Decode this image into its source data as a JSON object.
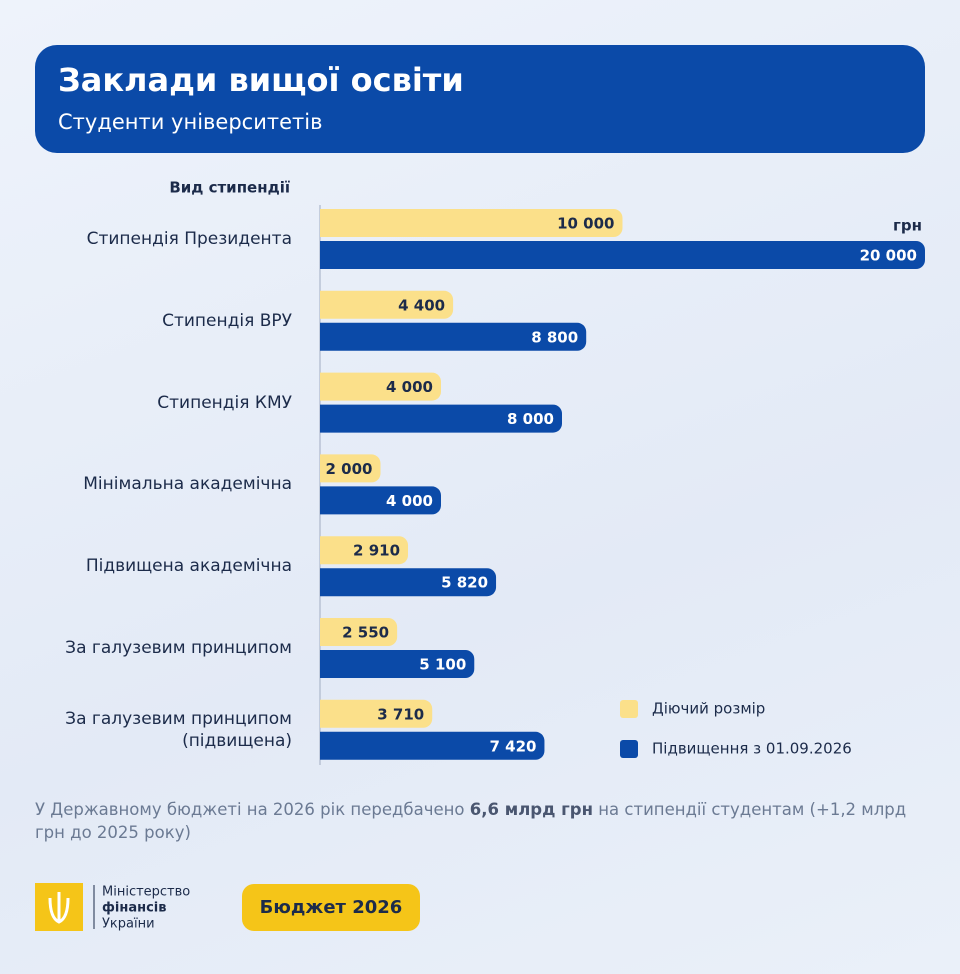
{
  "header": {
    "title": "Заклади вищої освіти",
    "subtitle": "Студенти університетів"
  },
  "chart_data": {
    "type": "bar",
    "orientation": "horizontal",
    "y_axis_label": "Вид стипендії",
    "unit": "грн",
    "categories": [
      "Стипендія Президента",
      "Стипендія ВРУ",
      "Стипендія КМУ",
      "Мінімальна академічна",
      "Підвищена академічна",
      "За галузевим принципом",
      "За галузевим принципом (підвищена)"
    ],
    "series": [
      {
        "name": "Діючий розмір",
        "color": "#fbe08a",
        "values": [
          10000,
          4400,
          4000,
          2000,
          2910,
          2550,
          3710
        ],
        "value_labels": [
          "10 000",
          "4 400",
          "4 000",
          "2 000",
          "2 910",
          "2 550",
          "3 710"
        ]
      },
      {
        "name": "Підвищення з 01.09.2026",
        "color": "#0b4aa8",
        "values": [
          20000,
          8800,
          8000,
          4000,
          5820,
          5100,
          7420
        ],
        "value_labels": [
          "20 000",
          "8 800",
          "8 000",
          "4 000",
          "5 820",
          "5 100",
          "7 420"
        ]
      }
    ],
    "xlim": [
      0,
      20000
    ],
    "legend": "lower right"
  },
  "footnote": [
    "У Державному бюджеті на 2026 рік передбачено ",
    "6,6 млрд грн",
    " на стипендії студентам (+1,2 млрд грн до 2025 року)"
  ],
  "footer": {
    "ministry": [
      "Міністерство",
      "фінансів",
      "України"
    ],
    "badge": "Бюджет 2026"
  }
}
